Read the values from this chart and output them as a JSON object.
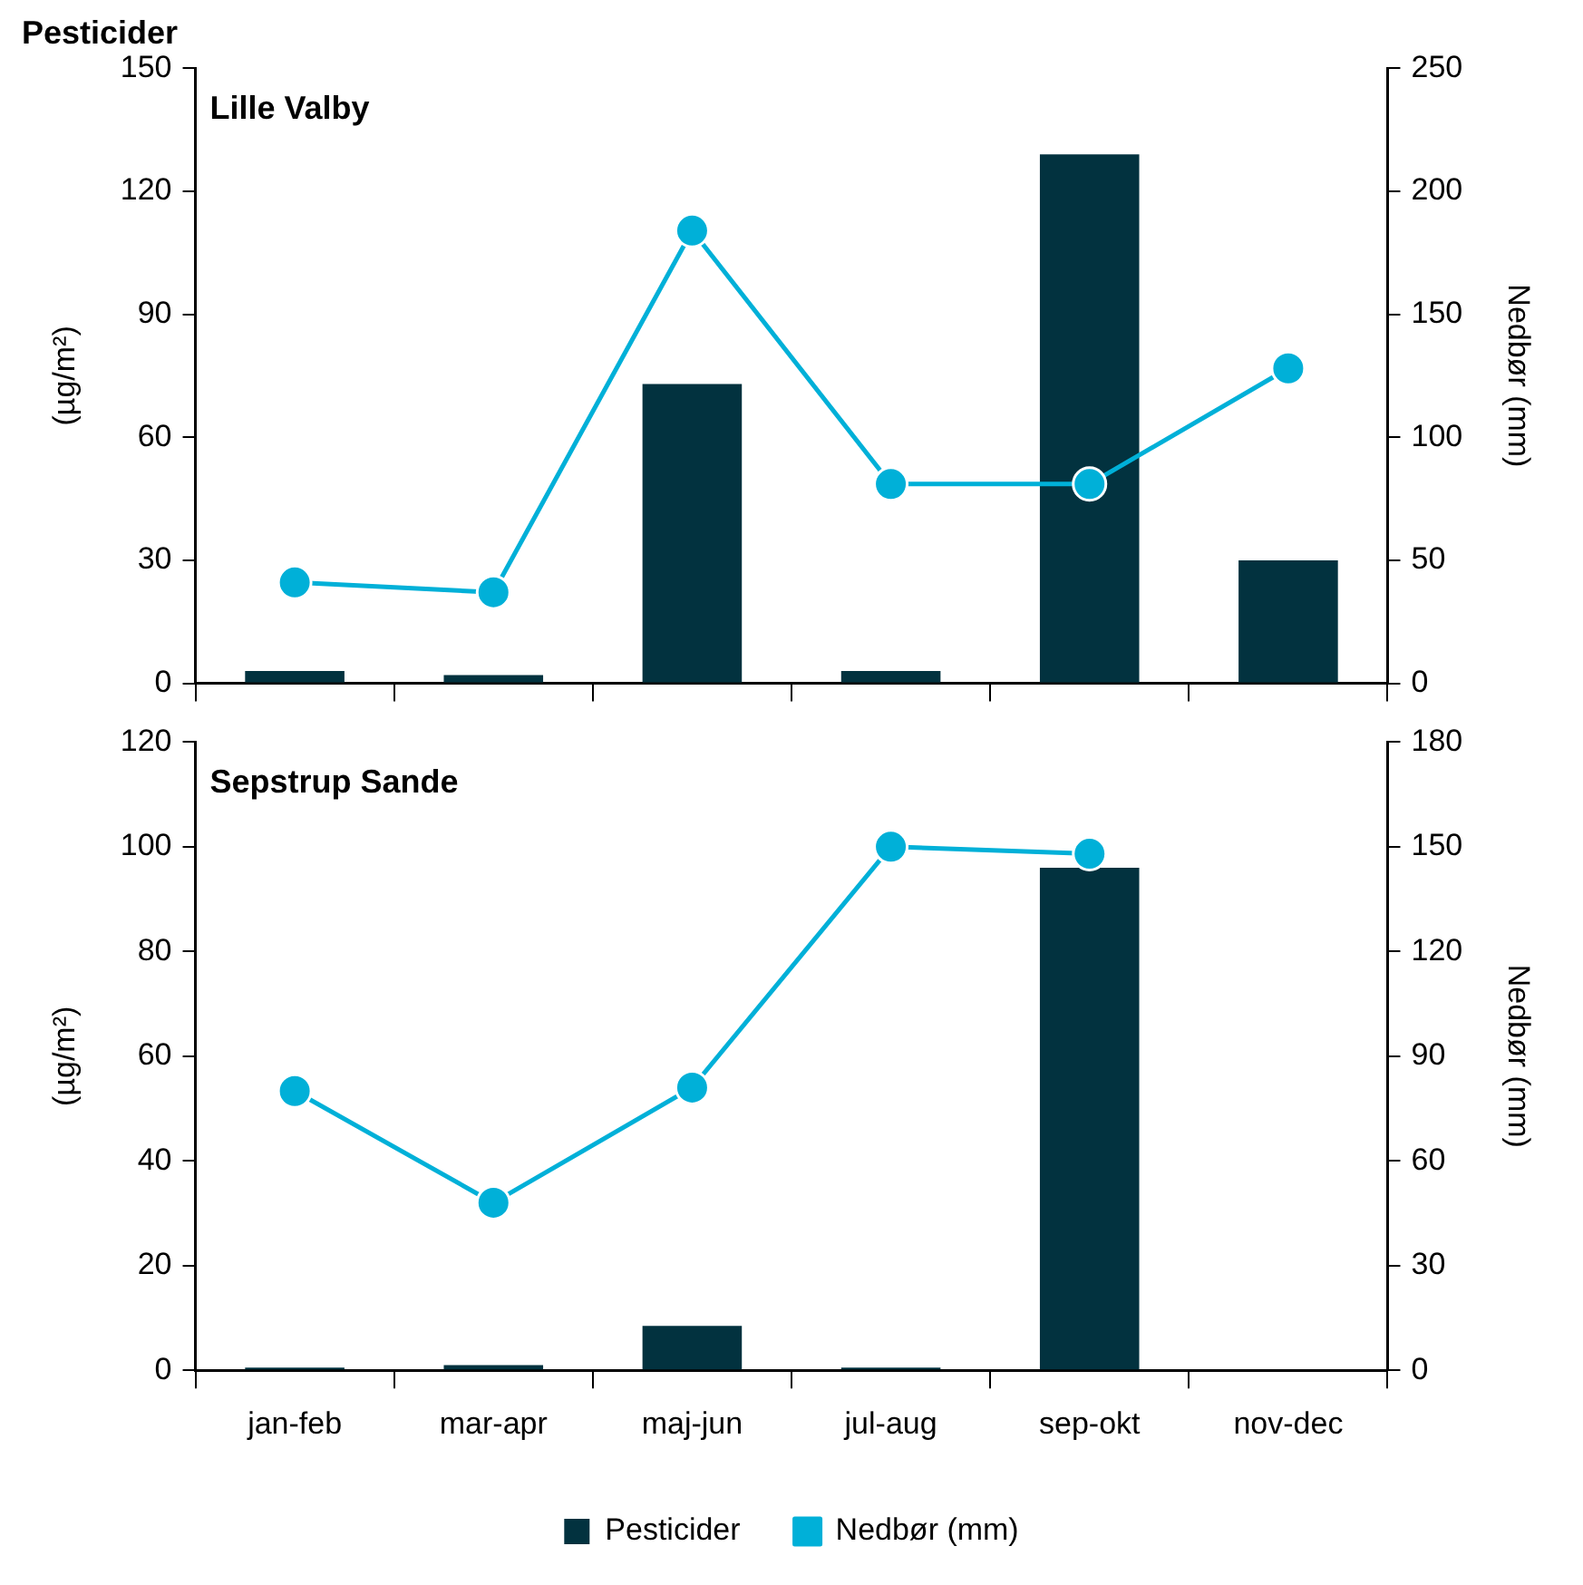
{
  "chart_data": [
    {
      "type": "bar",
      "title": "Pesticider",
      "subtitle": "Lille Valby",
      "ylabel": "(µg/m²)",
      "y2label": "Nedbør (mm)",
      "categories": [
        null,
        null,
        null,
        null,
        null,
        null
      ],
      "series": [
        {
          "color": "#02323f",
          "values": [
            3,
            2,
            73,
            3,
            129,
            30
          ]
        },
        {
          "type": "line",
          "axis": "y2",
          "color": "#00b0d8",
          "values": [
            41,
            37,
            184,
            81,
            81,
            128
          ]
        }
      ],
      "ylim": [
        0,
        150
      ],
      "yticks": [
        0,
        30,
        60,
        90,
        120,
        150
      ],
      "y2lim": [
        0,
        250
      ],
      "y2ticks": [
        0,
        50,
        100,
        150,
        200,
        250
      ],
      "grid": false,
      "legend": false,
      "marker": "circle",
      "line_style": "solid",
      "tick_labels": "y"
    },
    {
      "type": "bar",
      "subtitle": "Sepstrup Sande",
      "ylabel": "(µg/m²)",
      "y2label": "Nedbør (mm)",
      "categories": [
        "jan-feb",
        "mar-apr",
        "maj-jun",
        "jul-aug",
        "sep-okt",
        "nov-dec"
      ],
      "series": [
        {
          "name": "Pesticider",
          "color": "#02323f",
          "values": [
            0.5,
            1,
            8.5,
            0.5,
            96,
            0
          ]
        },
        {
          "type": "line",
          "name": "Nedbør (mm)",
          "axis": "y2",
          "color": "#00b0d8",
          "values": [
            80,
            48,
            81,
            150,
            148,
            null
          ]
        }
      ],
      "ylim": [
        0,
        120
      ],
      "yticks": [
        0,
        20,
        40,
        60,
        80,
        100,
        120
      ],
      "y2lim": [
        0,
        180
      ],
      "y2ticks": [
        0,
        30,
        60,
        90,
        120,
        150,
        180
      ],
      "grid": false,
      "legend": "bottom",
      "marker": "circle",
      "line_style": "solid"
    }
  ]
}
